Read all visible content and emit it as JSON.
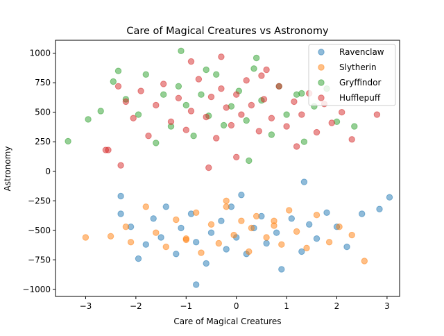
{
  "chart_data": {
    "type": "scatter",
    "title": "Care of Magical Creatures vs Astronomy",
    "xlabel": "Care of Magical Creatures",
    "ylabel": "Astronomy",
    "xlim": [
      -3.6,
      3.25
    ],
    "ylim": [
      -1060,
      1110
    ],
    "xticks": [
      -3,
      -2,
      -1,
      0,
      1,
      2,
      3
    ],
    "xtick_labels": [
      "−3",
      "−2",
      "−1",
      "0",
      "1",
      "2",
      "3"
    ],
    "yticks": [
      -1000,
      -750,
      -500,
      -250,
      0,
      250,
      500,
      750,
      1000
    ],
    "ytick_labels": [
      "−1000",
      "−750",
      "−500",
      "−250",
      "0",
      "250",
      "500",
      "750",
      "1000"
    ],
    "grid": false,
    "legend_position": "top-right",
    "series": [
      {
        "name": "Ravenclaw",
        "color": "#1f77b4",
        "x": [
          -2.3,
          -2.1,
          -1.95,
          -1.8,
          -1.65,
          -1.5,
          -1.4,
          -1.2,
          -1.1,
          -0.9,
          -0.8,
          -0.6,
          -0.5,
          -0.3,
          -0.2,
          -0.1,
          0.0,
          0.1,
          0.2,
          0.35,
          0.5,
          0.6,
          0.8,
          0.9,
          1.1,
          1.3,
          1.45,
          1.6,
          1.8,
          2.0,
          2.2,
          2.5,
          2.85,
          3.05,
          -0.8,
          -2.3,
          1.35
        ],
        "y": [
          -210,
          -470,
          -740,
          -620,
          -400,
          -560,
          -300,
          -700,
          -480,
          -360,
          -600,
          -780,
          -520,
          -420,
          -660,
          -300,
          -560,
          -200,
          -700,
          -480,
          -380,
          -610,
          -520,
          -830,
          -400,
          -680,
          -450,
          -570,
          -350,
          -470,
          -640,
          -360,
          -320,
          -220,
          -960,
          -360,
          -90
        ]
      },
      {
        "name": "Slytherin",
        "color": "#ff7f0e",
        "x": [
          -3.0,
          -2.5,
          -2.2,
          -2.1,
          -1.8,
          -1.6,
          -1.4,
          -1.2,
          -1.0,
          -0.8,
          -0.7,
          -0.5,
          -0.35,
          -0.2,
          -0.05,
          0.1,
          0.25,
          0.4,
          0.6,
          0.75,
          0.9,
          1.05,
          1.2,
          1.4,
          1.6,
          1.85,
          2.05,
          2.3,
          2.55,
          -0.2,
          0.3,
          -1.0,
          0.75
        ],
        "y": [
          -560,
          -550,
          -470,
          -600,
          -300,
          -520,
          -640,
          -410,
          -580,
          -350,
          -690,
          -450,
          -610,
          -300,
          -540,
          -420,
          -680,
          -380,
          -560,
          -460,
          -620,
          -330,
          -510,
          -650,
          -370,
          -600,
          -470,
          -540,
          -760,
          -250,
          -480,
          -570,
          -420
        ]
      },
      {
        "name": "Gryffindor",
        "color": "#2ca02c",
        "x": [
          -3.35,
          -2.95,
          -2.7,
          -2.45,
          -2.35,
          -2.2,
          -1.95,
          -1.8,
          -1.6,
          -1.45,
          -1.3,
          -1.15,
          -1.0,
          -0.85,
          -0.7,
          -0.55,
          -0.4,
          -0.25,
          -0.1,
          0.05,
          0.2,
          0.35,
          0.5,
          0.7,
          0.85,
          1.0,
          1.2,
          1.35,
          1.55,
          1.8,
          2.0,
          2.35,
          -1.1,
          0.4,
          -0.6,
          0.25,
          1.3
        ],
        "y": [
          255,
          440,
          510,
          760,
          850,
          610,
          480,
          820,
          240,
          650,
          380,
          720,
          560,
          300,
          650,
          470,
          820,
          390,
          550,
          680,
          430,
          870,
          600,
          310,
          720,
          480,
          650,
          250,
          550,
          700,
          420,
          380,
          1020,
          960,
          860,
          90,
          660
        ]
      },
      {
        "name": "Hufflepuff",
        "color": "#d62728",
        "x": [
          -2.6,
          -2.35,
          -2.2,
          -2.05,
          -1.9,
          -1.75,
          -1.6,
          -1.45,
          -1.3,
          -1.15,
          -1.0,
          -0.9,
          -0.75,
          -0.6,
          -0.5,
          -0.4,
          -0.3,
          -0.2,
          -0.1,
          0.0,
          0.1,
          0.2,
          0.3,
          0.45,
          0.55,
          0.7,
          0.85,
          1.0,
          1.15,
          1.3,
          1.45,
          1.6,
          1.75,
          1.9,
          2.1,
          2.3,
          2.8,
          -2.55,
          -2.3,
          -0.3,
          -0.55,
          0.0,
          0.6,
          1.2,
          -0.9,
          0.5
        ],
        "y": [
          180,
          720,
          590,
          450,
          680,
          300,
          560,
          740,
          420,
          620,
          350,
          510,
          780,
          460,
          630,
          280,
          700,
          540,
          390,
          650,
          480,
          770,
          560,
          340,
          610,
          450,
          720,
          380,
          590,
          480,
          660,
          330,
          570,
          410,
          500,
          270,
          480,
          180,
          50,
          970,
          30,
          120,
          860,
          210,
          930,
          810
        ]
      }
    ]
  }
}
